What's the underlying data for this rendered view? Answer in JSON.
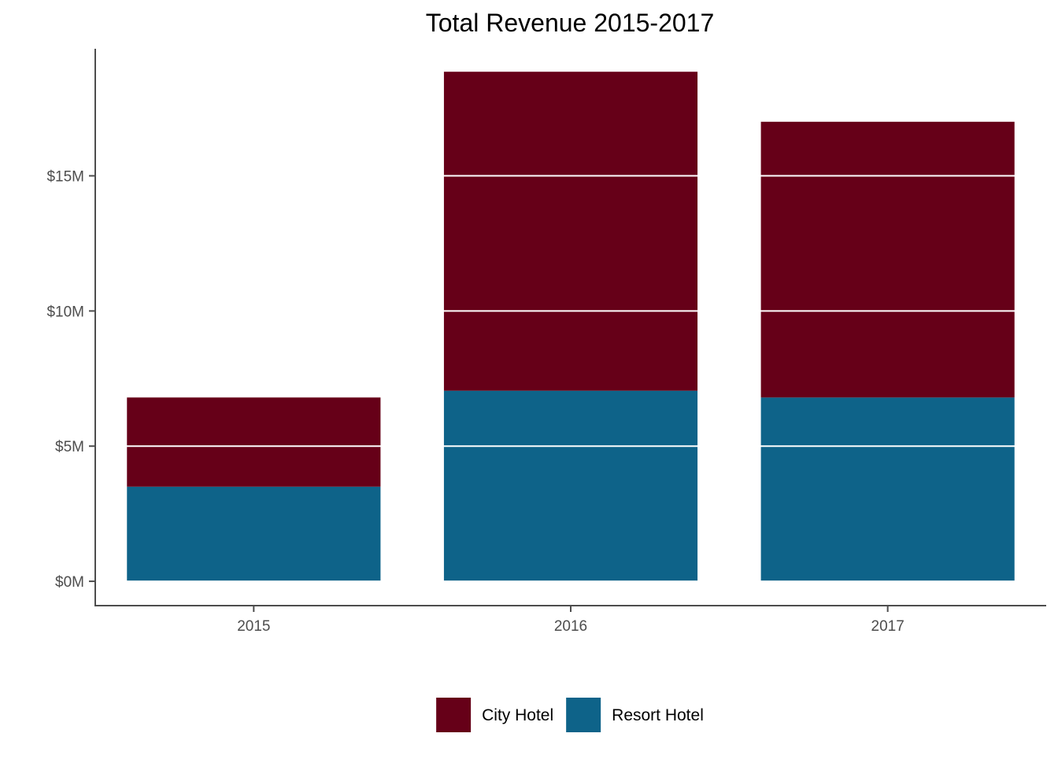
{
  "chart_data": {
    "type": "bar",
    "stacked": true,
    "title": "Total Revenue 2015-2017",
    "xlabel": "",
    "ylabel": "",
    "categories": [
      "2015",
      "2016",
      "2017"
    ],
    "series": [
      {
        "name": "Resort Hotel",
        "color": "#0e6389",
        "values": [
          3.5,
          7.05,
          6.8
        ]
      },
      {
        "name": "City Hotel",
        "color": "#660018",
        "values": [
          3.3,
          11.8,
          10.2
        ]
      }
    ],
    "ylim": [
      -0.9,
      19.7
    ],
    "yticks": [
      0,
      5,
      10,
      15
    ],
    "ytick_labels": [
      "$0M",
      "$5M",
      "$10M",
      "$15M"
    ],
    "grid": {
      "major_y": true,
      "color": "#ffffff",
      "drawn_over_bars": true
    },
    "legend": {
      "position": "bottom",
      "order": [
        "City Hotel",
        "Resort Hotel"
      ]
    },
    "axis_color": "#4d4d4d"
  }
}
